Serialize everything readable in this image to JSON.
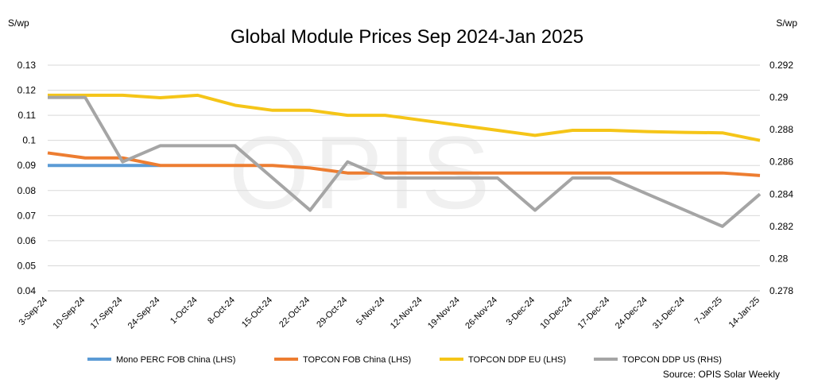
{
  "chart_data": {
    "type": "line",
    "title": "Global Module Prices Sep 2024-Jan 2025",
    "y_left_unit": "S/wp",
    "y_right_unit": "S/wp",
    "watermark": "OPIS",
    "source": "Source: OPIS Solar Weekly",
    "categories": [
      "3-Sep-24",
      "10-Sep-24",
      "17-Sep-24",
      "24-Sep-24",
      "1-Oct-24",
      "8-Oct-24",
      "15-Oct-24",
      "22-Oct-24",
      "29-Oct-24",
      "5-Nov-24",
      "12-Nov-24",
      "19-Nov-24",
      "26-Nov-24",
      "3-Dec-24",
      "10-Dec-24",
      "17-Dec-24",
      "24-Dec-24",
      "31-Dec-24",
      "7-Jan-25",
      "14-Jan-25"
    ],
    "y_left": {
      "min": 0.04,
      "max": 0.13,
      "ticks": [
        "0.04",
        "0.05",
        "0.06",
        "0.07",
        "0.08",
        "0.09",
        "0.1",
        "0.11",
        "0.12",
        "0.13"
      ]
    },
    "y_right": {
      "min": 0.278,
      "max": 0.292,
      "ticks": [
        "0.278",
        "0.28",
        "0.282",
        "0.284",
        "0.286",
        "0.288",
        "0.29",
        "0.292"
      ]
    },
    "gridlines": true,
    "legend_position": "bottom",
    "series": [
      {
        "name": "Mono PERC FOB China (LHS)",
        "axis": "left",
        "color": "#5b9bd5",
        "values": [
          0.09,
          0.09,
          0.09,
          0.09,
          null,
          null,
          null,
          null,
          null,
          null,
          null,
          null,
          null,
          null,
          null,
          null,
          null,
          null,
          null,
          null
        ]
      },
      {
        "name": "TOPCON FOB China (LHS)",
        "axis": "left",
        "color": "#ed7d31",
        "values": [
          0.095,
          0.093,
          0.093,
          0.09,
          0.09,
          0.09,
          0.09,
          0.089,
          0.087,
          0.087,
          0.087,
          0.087,
          0.087,
          0.087,
          0.087,
          0.087,
          0.087,
          0.087,
          0.087,
          0.086
        ]
      },
      {
        "name": "TOPCON DDP EU (LHS)",
        "axis": "left",
        "color": "#f5c518",
        "values": [
          0.118,
          0.118,
          0.118,
          0.117,
          0.118,
          0.114,
          0.112,
          0.112,
          0.11,
          0.11,
          0.108,
          0.106,
          0.104,
          0.102,
          0.104,
          0.104,
          0.1035,
          0.1032,
          0.103,
          0.1
        ]
      },
      {
        "name": "TOPCON DDP US (RHS)",
        "axis": "right",
        "color": "#a5a5a5",
        "values": [
          0.29,
          0.29,
          0.286,
          0.287,
          0.287,
          0.287,
          0.285,
          0.283,
          0.286,
          0.285,
          0.285,
          0.285,
          0.285,
          0.283,
          0.285,
          0.285,
          0.284,
          0.283,
          0.282,
          0.284
        ]
      }
    ]
  }
}
